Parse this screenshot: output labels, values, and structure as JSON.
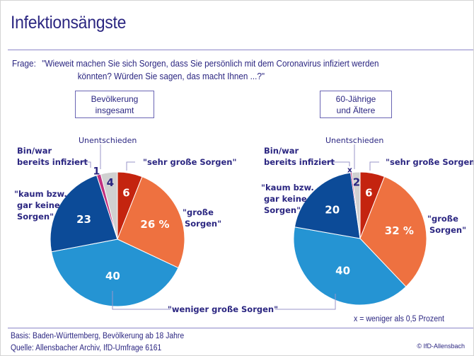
{
  "header": {
    "title": "Infektionsängste",
    "question_label": "Frage:",
    "question_line1": "\"Wieweit machen Sie sich Sorgen, dass Sie persönlich mit dem Coronavirus infiziert werden",
    "question_line2": "könnten? Würden Sie sagen, das macht Ihnen ...?\""
  },
  "colors": {
    "text": "#2b2681",
    "rule": "#8c87c8",
    "sehr_grosse_sorgen": "#c4240f",
    "grosse_sorgen": "#ee7140",
    "weniger_grosse_sorgen": "#2594d3",
    "kaum_keine_sorgen": "#0c4b98",
    "infiziert": "#c12f7e",
    "unentschieden": "#d0d0d0"
  },
  "note": "x = weniger als 0,5 Prozent",
  "footer": {
    "basis": "Basis: Baden-Württemberg, Bevölkerung ab 18 Jahre",
    "quelle": "Quelle: Allensbacher Archiv, IfD-Umfrage 6161",
    "copyright": "© IfD-Allensbach"
  },
  "labels": {
    "unentschieden": "Unentschieden",
    "infiziert_line1": "Bin/war",
    "infiziert_line2": "bereits infiziert",
    "sehr_grosse": "\"sehr große Sorgen\"",
    "grosse_line1": "\"große",
    "grosse_line2": "Sorgen\"",
    "kaum_line1": "\"kaum bzw.",
    "kaum_line2": "gar keine",
    "kaum_line3": "Sorgen\"",
    "weniger": "\"weniger große Sorgen\""
  },
  "chart_data": [
    {
      "type": "pie",
      "title": "Bevölkerung insgesamt",
      "title_line1": "Bevölkerung",
      "title_line2": "insgesamt",
      "unit": "%",
      "slices": [
        {
          "key": "sehr_grosse_sorgen",
          "label": "\"sehr große Sorgen\"",
          "value": 6,
          "display": "6"
        },
        {
          "key": "grosse_sorgen",
          "label": "\"große Sorgen\"",
          "value": 26,
          "display": "26 %"
        },
        {
          "key": "weniger_grosse_sorgen",
          "label": "\"weniger große Sorgen\"",
          "value": 40,
          "display": "40"
        },
        {
          "key": "kaum_keine_sorgen",
          "label": "\"kaum bzw. gar keine Sorgen\"",
          "value": 23,
          "display": "23"
        },
        {
          "key": "infiziert",
          "label": "Bin/war bereits infiziert",
          "value": 1,
          "display": "1"
        },
        {
          "key": "unentschieden",
          "label": "Unentschieden",
          "value": 4,
          "display": "4"
        }
      ]
    },
    {
      "type": "pie",
      "title": "60-Jährige und Ältere",
      "title_line1": "60-Jährige",
      "title_line2": "und Ältere",
      "unit": "%",
      "slices": [
        {
          "key": "sehr_grosse_sorgen",
          "label": "\"sehr große Sorgen\"",
          "value": 6,
          "display": "6"
        },
        {
          "key": "grosse_sorgen",
          "label": "\"große Sorgen\"",
          "value": 32,
          "display": "32 %"
        },
        {
          "key": "weniger_grosse_sorgen",
          "label": "\"weniger große Sorgen\"",
          "value": 40,
          "display": "40"
        },
        {
          "key": "kaum_keine_sorgen",
          "label": "\"kaum bzw. gar keine Sorgen\"",
          "value": 20,
          "display": "20"
        },
        {
          "key": "infiziert",
          "label": "Bin/war bereits infiziert",
          "value": 0.3,
          "display": "x"
        },
        {
          "key": "unentschieden",
          "label": "Unentschieden",
          "value": 2,
          "display": "2"
        }
      ]
    }
  ]
}
